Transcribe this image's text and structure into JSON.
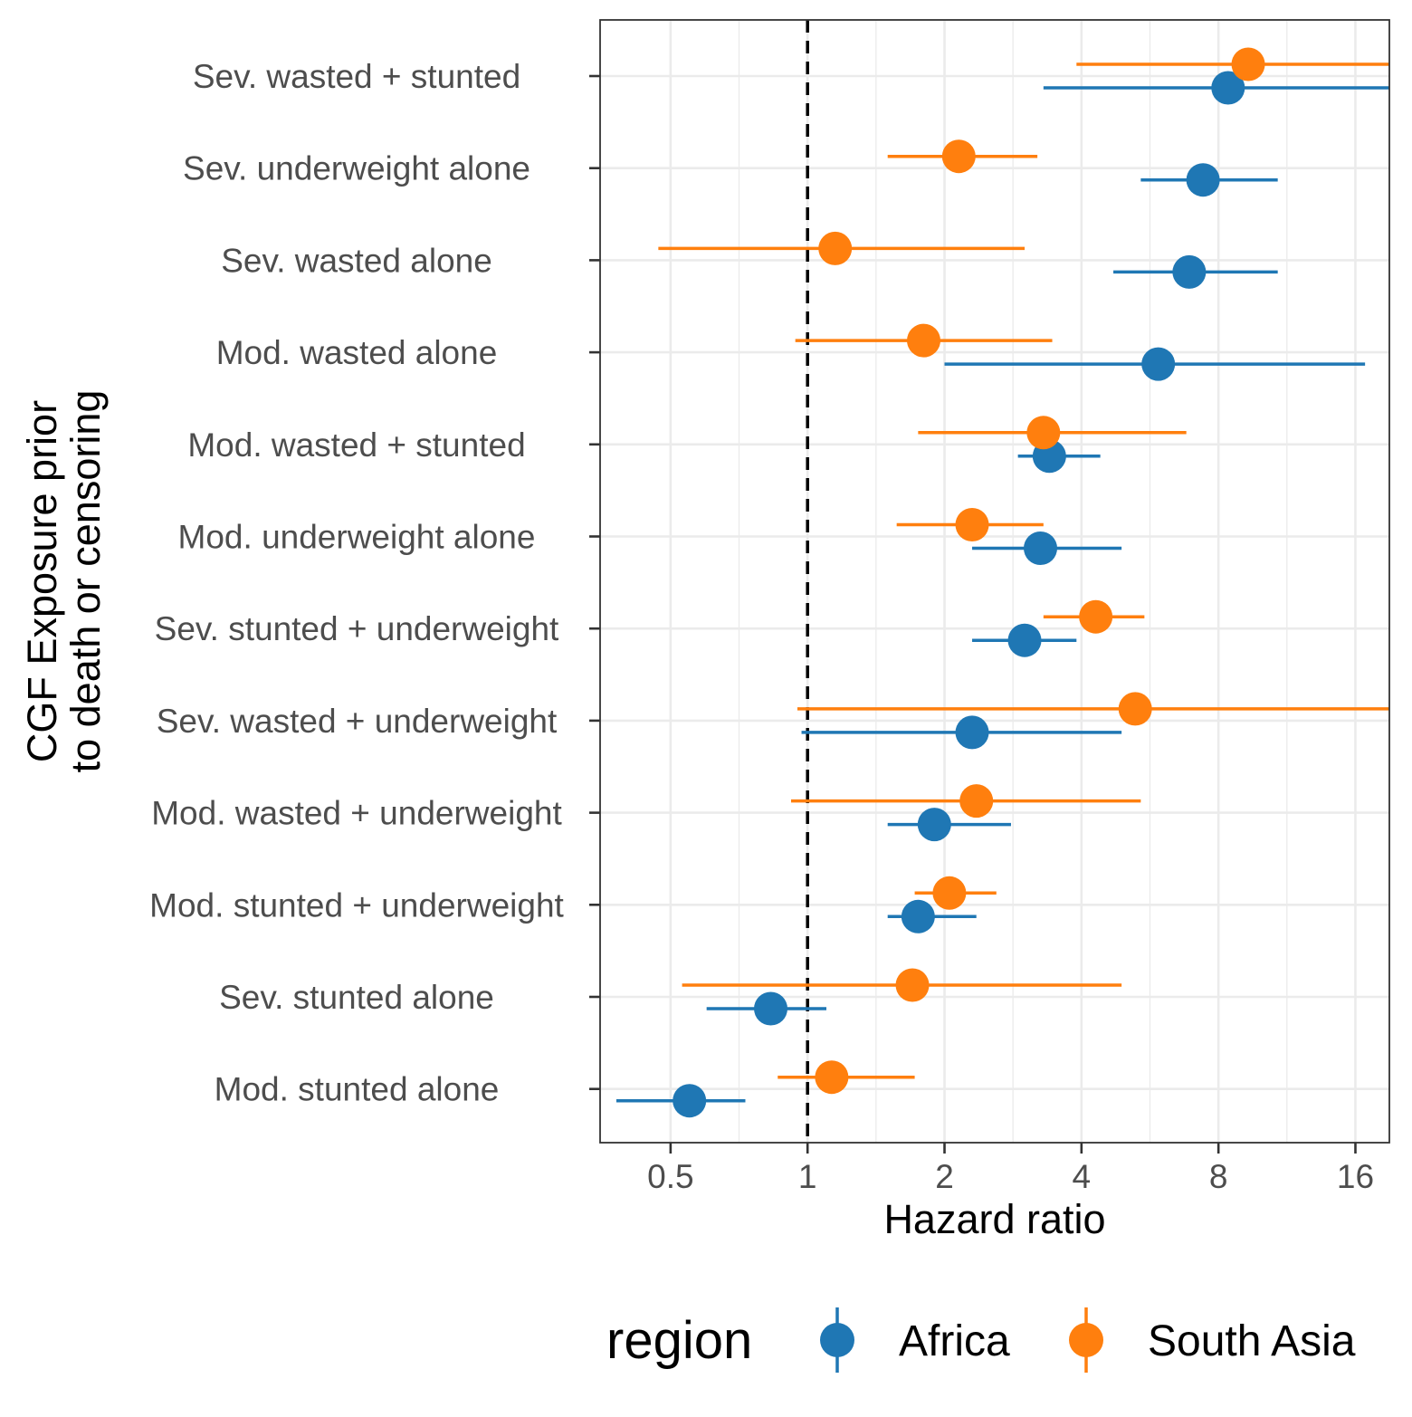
{
  "chart_data": {
    "type": "scatter",
    "subtype": "forest-plot",
    "title": "",
    "xlabel": "Hazard ratio",
    "ylabel": "CGF Exposure prior\nto death or censoring",
    "x_scale": "log2",
    "xlim": [
      0.35,
      19
    ],
    "x_ticks": [
      0.5,
      1,
      2,
      4,
      8,
      16
    ],
    "x_tick_labels": [
      "0.5",
      "1",
      "2",
      "4",
      "8",
      "16"
    ],
    "reference_line": 1,
    "grid": true,
    "legend": {
      "title": "region",
      "position": "bottom",
      "entries": [
        "Africa",
        "South Asia"
      ]
    },
    "categories": [
      "Sev. wasted + stunted",
      "Sev. underweight alone",
      "Sev. wasted alone",
      "Mod. wasted alone",
      "Mod. wasted + stunted",
      "Mod. underweight alone",
      "Sev. stunted + underweight",
      "Sev. wasted + underweight",
      "Mod. wasted + underweight",
      "Mod. stunted + underweight",
      "Sev. stunted alone",
      "Mod. stunted alone"
    ],
    "series": [
      {
        "name": "Africa",
        "color": "#1F77B4",
        "estimate": [
          8.4,
          7.4,
          6.9,
          5.9,
          3.4,
          3.25,
          3.0,
          2.3,
          1.9,
          1.75,
          0.83,
          0.55
        ],
        "lower": [
          3.3,
          5.4,
          4.7,
          2.0,
          2.9,
          2.3,
          2.3,
          0.97,
          1.5,
          1.5,
          0.6,
          0.38
        ],
        "upper": [
          19,
          10.8,
          10.8,
          16.8,
          4.4,
          4.9,
          3.9,
          4.9,
          2.8,
          2.35,
          1.1,
          0.73
        ]
      },
      {
        "name": "South Asia",
        "color": "#FF7F0E",
        "estimate": [
          9.3,
          2.15,
          1.15,
          1.8,
          3.3,
          2.3,
          4.3,
          5.25,
          2.35,
          2.05,
          1.7,
          1.13
        ],
        "lower": [
          3.9,
          1.5,
          0.47,
          0.94,
          1.75,
          1.57,
          3.3,
          0.95,
          0.92,
          1.72,
          0.53,
          0.86
        ],
        "upper": [
          19,
          3.2,
          3.0,
          3.45,
          6.8,
          3.3,
          5.5,
          19,
          5.4,
          2.6,
          4.9,
          1.72
        ]
      }
    ]
  }
}
